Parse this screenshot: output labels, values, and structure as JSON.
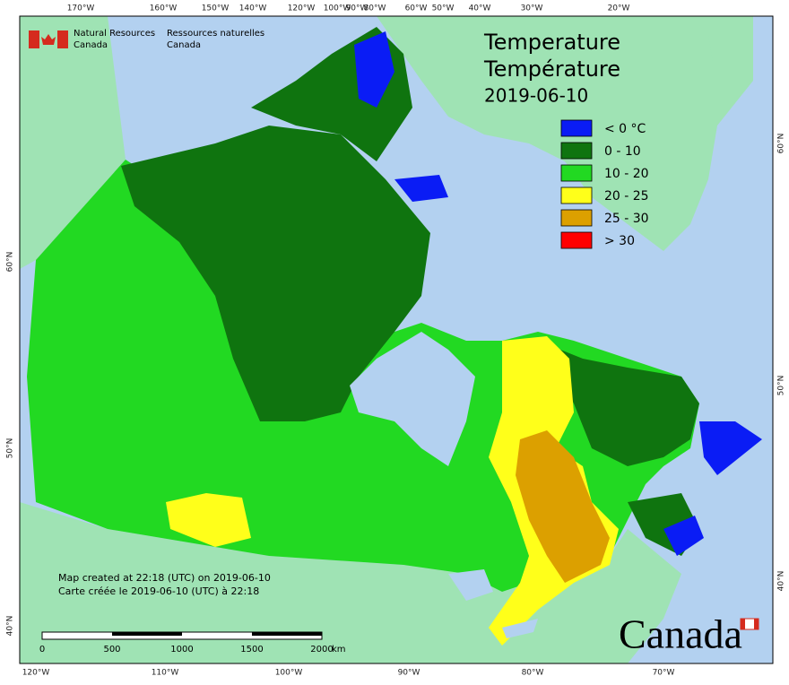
{
  "graticule": {
    "top": [
      "170°W",
      "160°W",
      "150°W",
      "140°W",
      "120°W",
      "100°W",
      "90°W",
      "80°W",
      "60°W",
      "50°W",
      "40°W",
      "30°W",
      "20°W"
    ],
    "bottom": [
      "120°W",
      "110°W",
      "100°W",
      "90°W",
      "80°W",
      "70°W"
    ],
    "left": [
      "60°N",
      "50°N",
      "40°N"
    ],
    "right": [
      "60°N",
      "50°N",
      "40°N"
    ]
  },
  "logo": {
    "en_line1": "Natural Resources",
    "en_line2": "Canada",
    "fr_line1": "Ressources naturelles",
    "fr_line2": "Canada"
  },
  "title": {
    "en": "Temperature",
    "fr": "Température",
    "date": "2019-06-10"
  },
  "legend": [
    {
      "label": "< 0 °C",
      "color": "#0a1cf5"
    },
    {
      "label": "0 - 10",
      "color": "#0f740f"
    },
    {
      "label": "10 - 20",
      "color": "#22d922"
    },
    {
      "label": "20 - 25",
      "color": "#ffff1a"
    },
    {
      "label": "25 - 30",
      "color": "#dca000"
    },
    {
      "label": "> 30",
      "color": "#ff0000"
    }
  ],
  "footer": {
    "en": "Map created at 22:18 (UTC) on 2019-06-10",
    "fr": "Carte créée le 2019-06-10 (UTC) à 22:18"
  },
  "scale": {
    "ticks": [
      "0",
      "500",
      "1000",
      "1500",
      "2000"
    ],
    "unit": "km"
  },
  "wordmark": "Canada"
}
